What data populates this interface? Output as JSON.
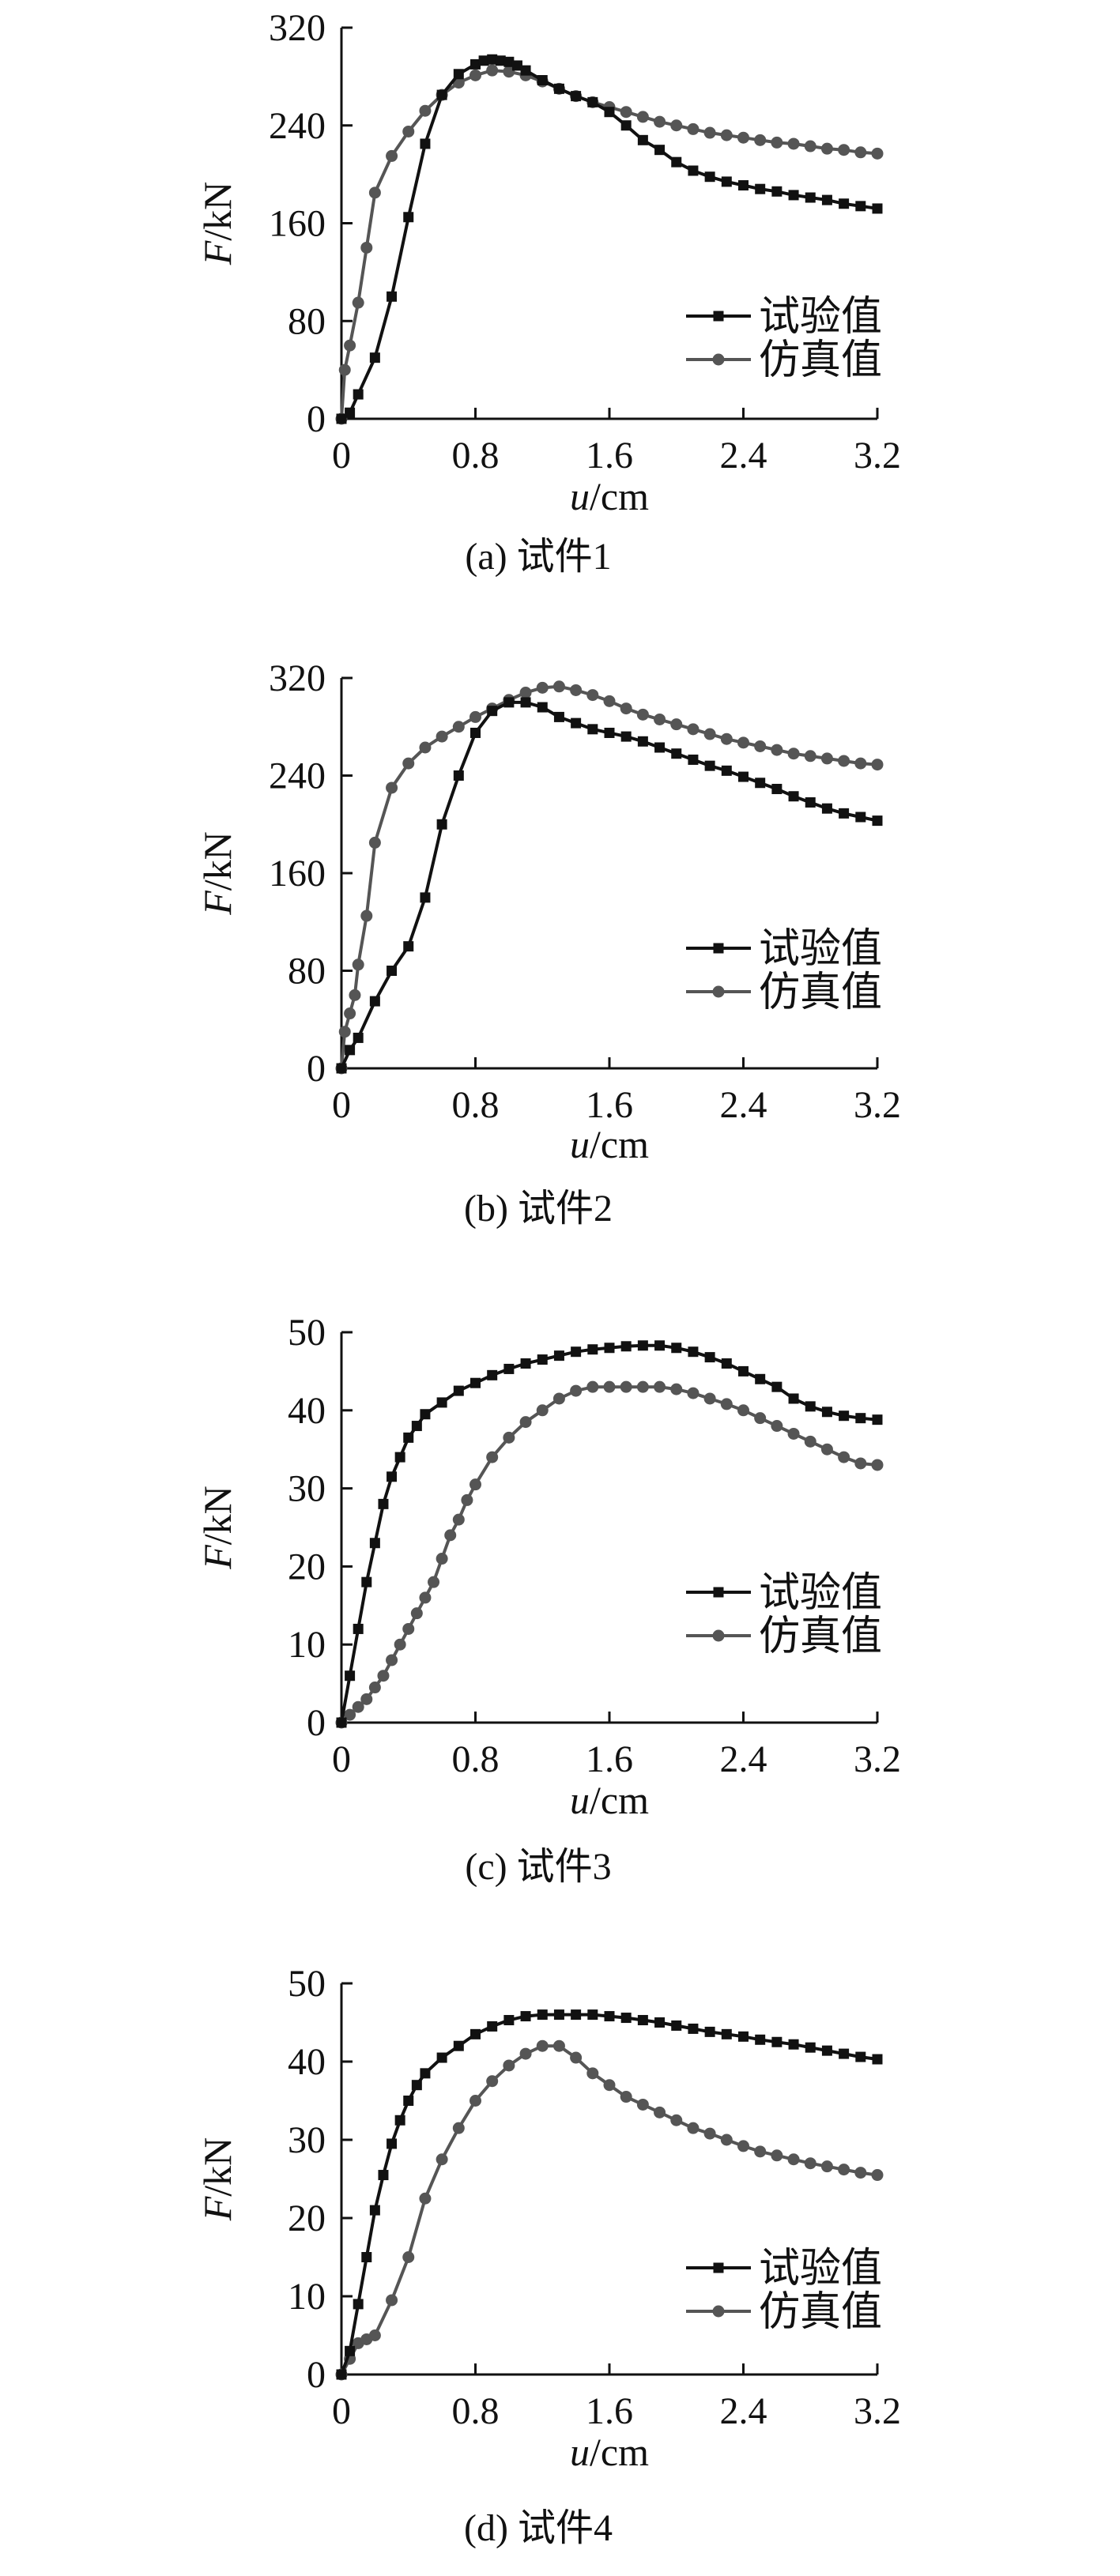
{
  "chart_data": [
    {
      "type": "line",
      "caption": "(a) 试件1",
      "xlabel": "u/cm",
      "ylabel": "F/kN",
      "xlim": [
        0,
        3.2
      ],
      "ylim": [
        0,
        320
      ],
      "xticks": [
        "0",
        "0.8",
        "1.6",
        "2.4",
        "3.2"
      ],
      "yticks": [
        "0",
        "80",
        "160",
        "240",
        "320"
      ],
      "legend_position": "right",
      "series": [
        {
          "name": "试验值",
          "color": "#111111",
          "marker": "square",
          "x": [
            0,
            0.05,
            0.1,
            0.2,
            0.3,
            0.4,
            0.5,
            0.6,
            0.7,
            0.8,
            0.85,
            0.9,
            0.95,
            1.0,
            1.05,
            1.1,
            1.2,
            1.3,
            1.4,
            1.5,
            1.6,
            1.7,
            1.8,
            1.9,
            2.0,
            2.1,
            2.2,
            2.3,
            2.4,
            2.5,
            2.6,
            2.7,
            2.8,
            2.9,
            3.0,
            3.1,
            3.2
          ],
          "y": [
            0,
            5,
            20,
            50,
            100,
            165,
            225,
            265,
            282,
            290,
            293,
            294,
            293,
            292,
            289,
            285,
            277,
            270,
            264,
            259,
            251,
            240,
            228,
            220,
            210,
            203,
            198,
            194,
            191,
            188,
            186,
            183,
            181,
            179,
            176,
            174,
            172
          ]
        },
        {
          "name": "仿真值",
          "color": "#555555",
          "marker": "circle",
          "x": [
            0,
            0.02,
            0.05,
            0.1,
            0.15,
            0.2,
            0.3,
            0.4,
            0.5,
            0.6,
            0.7,
            0.8,
            0.9,
            1.0,
            1.1,
            1.2,
            1.3,
            1.4,
            1.5,
            1.6,
            1.7,
            1.8,
            1.9,
            2.0,
            2.1,
            2.2,
            2.3,
            2.4,
            2.5,
            2.6,
            2.7,
            2.8,
            2.9,
            3.0,
            3.1,
            3.2
          ],
          "y": [
            0,
            40,
            60,
            95,
            140,
            185,
            215,
            235,
            252,
            265,
            275,
            281,
            285,
            284,
            281,
            276,
            270,
            264,
            259,
            255,
            251,
            247,
            243,
            240,
            237,
            234,
            232,
            230,
            228,
            226,
            225,
            223,
            221,
            220,
            218,
            217
          ]
        }
      ]
    },
    {
      "type": "line",
      "caption": "(b) 试件2",
      "xlabel": "u/cm",
      "ylabel": "F/kN",
      "xlim": [
        0,
        3.2
      ],
      "ylim": [
        0,
        320
      ],
      "xticks": [
        "0",
        "0.8",
        "1.6",
        "2.4",
        "3.2"
      ],
      "yticks": [
        "0",
        "80",
        "160",
        "240",
        "320"
      ],
      "legend_position": "right",
      "series": [
        {
          "name": "试验值",
          "color": "#111111",
          "marker": "square",
          "x": [
            0,
            0.05,
            0.1,
            0.2,
            0.3,
            0.4,
            0.5,
            0.6,
            0.7,
            0.8,
            0.9,
            1.0,
            1.1,
            1.2,
            1.3,
            1.4,
            1.5,
            1.6,
            1.7,
            1.8,
            1.9,
            2.0,
            2.1,
            2.2,
            2.3,
            2.4,
            2.5,
            2.6,
            2.7,
            2.8,
            2.9,
            3.0,
            3.1,
            3.2
          ],
          "y": [
            0,
            15,
            25,
            55,
            80,
            100,
            140,
            200,
            240,
            275,
            293,
            300,
            300,
            296,
            288,
            283,
            278,
            275,
            272,
            268,
            263,
            258,
            253,
            248,
            244,
            239,
            234,
            229,
            223,
            218,
            213,
            209,
            206,
            203
          ]
        },
        {
          "name": "仿真值",
          "color": "#555555",
          "marker": "circle",
          "x": [
            0,
            0.02,
            0.05,
            0.08,
            0.1,
            0.15,
            0.2,
            0.3,
            0.4,
            0.5,
            0.6,
            0.7,
            0.8,
            0.9,
            1.0,
            1.1,
            1.2,
            1.3,
            1.4,
            1.5,
            1.6,
            1.7,
            1.8,
            1.9,
            2.0,
            2.1,
            2.2,
            2.3,
            2.4,
            2.5,
            2.6,
            2.7,
            2.8,
            2.9,
            3.0,
            3.1,
            3.2
          ],
          "y": [
            0,
            30,
            45,
            60,
            85,
            125,
            185,
            230,
            250,
            263,
            272,
            280,
            288,
            295,
            302,
            308,
            312,
            313,
            310,
            306,
            301,
            295,
            290,
            286,
            282,
            278,
            274,
            270,
            267,
            264,
            261,
            258,
            256,
            254,
            252,
            250,
            249
          ]
        }
      ]
    },
    {
      "type": "line",
      "caption": "(c) 试件3",
      "xlabel": "u/cm",
      "ylabel": "F/kN",
      "xlim": [
        0,
        3.2
      ],
      "ylim": [
        0,
        50
      ],
      "xticks": [
        "0",
        "0.8",
        "1.6",
        "2.4",
        "3.2"
      ],
      "yticks": [
        "0",
        "10",
        "20",
        "30",
        "40",
        "50"
      ],
      "legend_position": "right",
      "series": [
        {
          "name": "试验值",
          "color": "#111111",
          "marker": "square",
          "x": [
            0,
            0.05,
            0.1,
            0.15,
            0.2,
            0.25,
            0.3,
            0.35,
            0.4,
            0.45,
            0.5,
            0.6,
            0.7,
            0.8,
            0.9,
            1.0,
            1.1,
            1.2,
            1.3,
            1.4,
            1.5,
            1.6,
            1.7,
            1.8,
            1.9,
            2.0,
            2.1,
            2.2,
            2.3,
            2.4,
            2.5,
            2.6,
            2.7,
            2.8,
            2.9,
            3.0,
            3.1,
            3.2
          ],
          "y": [
            0,
            6,
            12,
            18,
            23,
            28,
            31.5,
            34,
            36.5,
            38,
            39.5,
            41,
            42.5,
            43.5,
            44.5,
            45.3,
            46,
            46.5,
            47,
            47.5,
            47.8,
            48,
            48.2,
            48.3,
            48.3,
            48,
            47.5,
            46.8,
            46,
            45,
            44,
            43,
            41.5,
            40.5,
            39.8,
            39.3,
            39,
            38.8
          ]
        },
        {
          "name": "仿真值",
          "color": "#555555",
          "marker": "circle",
          "x": [
            0,
            0.05,
            0.1,
            0.15,
            0.2,
            0.25,
            0.3,
            0.35,
            0.4,
            0.45,
            0.5,
            0.55,
            0.6,
            0.65,
            0.7,
            0.75,
            0.8,
            0.9,
            1.0,
            1.1,
            1.2,
            1.3,
            1.4,
            1.5,
            1.6,
            1.7,
            1.8,
            1.9,
            2.0,
            2.1,
            2.2,
            2.3,
            2.4,
            2.5,
            2.6,
            2.7,
            2.8,
            2.9,
            3.0,
            3.1,
            3.2
          ],
          "y": [
            0,
            1,
            2,
            3,
            4.5,
            6,
            8,
            10,
            12,
            14,
            16,
            18,
            21,
            24,
            26,
            28.5,
            30.5,
            34,
            36.5,
            38.5,
            40,
            41.5,
            42.5,
            43,
            43,
            43,
            43,
            43,
            42.7,
            42.2,
            41.5,
            40.8,
            40,
            39,
            38,
            37,
            36,
            35,
            34,
            33.2,
            33
          ]
        }
      ]
    },
    {
      "type": "line",
      "caption": "(d) 试件4",
      "xlabel": "u/cm",
      "ylabel": "F/kN",
      "xlim": [
        0,
        3.2
      ],
      "ylim": [
        0,
        50
      ],
      "xticks": [
        "0",
        "0.8",
        "1.6",
        "2.4",
        "3.2"
      ],
      "yticks": [
        "0",
        "10",
        "20",
        "30",
        "40",
        "50"
      ],
      "legend_position": "right",
      "series": [
        {
          "name": "试验值",
          "color": "#111111",
          "marker": "square",
          "x": [
            0,
            0.05,
            0.1,
            0.15,
            0.2,
            0.25,
            0.3,
            0.35,
            0.4,
            0.45,
            0.5,
            0.6,
            0.7,
            0.8,
            0.9,
            1.0,
            1.1,
            1.2,
            1.3,
            1.4,
            1.5,
            1.6,
            1.7,
            1.8,
            1.9,
            2.0,
            2.1,
            2.2,
            2.3,
            2.4,
            2.5,
            2.6,
            2.7,
            2.8,
            2.9,
            3.0,
            3.1,
            3.2
          ],
          "y": [
            0,
            3,
            9,
            15,
            21,
            25.5,
            29.5,
            32.5,
            35,
            37,
            38.5,
            40.5,
            42,
            43.5,
            44.5,
            45.3,
            45.8,
            46,
            46,
            46,
            46,
            45.8,
            45.6,
            45.3,
            45,
            44.6,
            44.2,
            43.8,
            43.5,
            43.2,
            42.8,
            42.5,
            42.2,
            41.8,
            41.4,
            41,
            40.6,
            40.3
          ]
        },
        {
          "name": "仿真值",
          "color": "#555555",
          "marker": "circle",
          "x": [
            0,
            0.05,
            0.1,
            0.15,
            0.2,
            0.3,
            0.4,
            0.5,
            0.6,
            0.7,
            0.8,
            0.9,
            1.0,
            1.1,
            1.2,
            1.3,
            1.4,
            1.5,
            1.6,
            1.7,
            1.8,
            1.9,
            2.0,
            2.1,
            2.2,
            2.3,
            2.4,
            2.5,
            2.6,
            2.7,
            2.8,
            2.9,
            3.0,
            3.1,
            3.2
          ],
          "y": [
            0,
            2,
            4,
            4.5,
            5,
            9.5,
            15,
            22.5,
            27.5,
            31.5,
            35,
            37.5,
            39.5,
            41,
            42,
            42,
            40.5,
            38.5,
            37,
            35.5,
            34.5,
            33.5,
            32.5,
            31.5,
            30.8,
            30,
            29.2,
            28.5,
            28,
            27.5,
            27,
            26.6,
            26.2,
            25.8,
            25.5
          ]
        }
      ]
    }
  ]
}
